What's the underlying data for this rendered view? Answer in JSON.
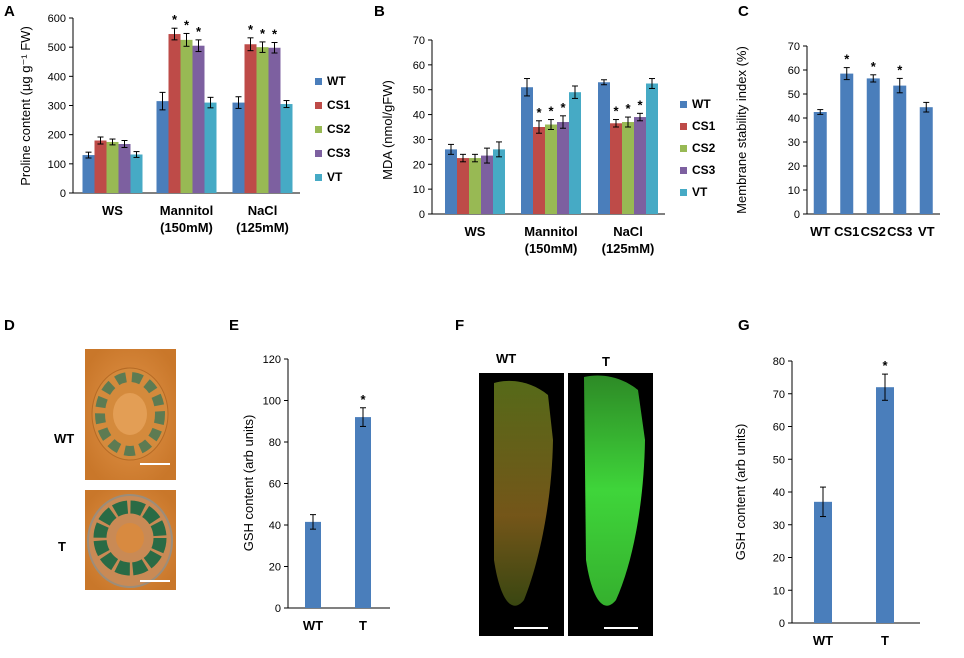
{
  "colors": {
    "WT": "#4a7ebb",
    "CS1": "#be4b48",
    "CS2": "#98b954",
    "CS3": "#7d60a0",
    "VT": "#46aac5",
    "bar": "#4a7ebb",
    "img_orange": "#d9822b",
    "img_green_dark": "#2f6b4f",
    "img_green_bright": "#3fc93a",
    "img_black": "#000000"
  },
  "panels": [
    {
      "letter": "A",
      "chart_data": {
        "type": "bar",
        "ylabel": "Proline content (µg g⁻¹ FW)",
        "ylim": [
          0,
          600
        ],
        "yticks": [
          0,
          100,
          200,
          300,
          400,
          500,
          600
        ],
        "groups": [
          "WS",
          "Mannitol\n(150mM)",
          "NaCl\n(125mM)"
        ],
        "series": [
          {
            "name": "WT",
            "values": [
              130,
              315,
              310
            ],
            "errors": [
              10,
              30,
              20
            ],
            "sig": [
              "",
              "",
              ""
            ]
          },
          {
            "name": "CS1",
            "values": [
              180,
              545,
              510
            ],
            "errors": [
              12,
              20,
              22
            ],
            "sig": [
              "",
              "*",
              "*"
            ]
          },
          {
            "name": "CS2",
            "values": [
              175,
              525,
              500
            ],
            "errors": [
              10,
              22,
              18
            ],
            "sig": [
              "",
              "*",
              "*"
            ]
          },
          {
            "name": "CS3",
            "values": [
              168,
              505,
              498
            ],
            "errors": [
              12,
              20,
              18
            ],
            "sig": [
              "",
              "*",
              "*"
            ]
          },
          {
            "name": "VT",
            "values": [
              132,
              310,
              305
            ],
            "errors": [
              10,
              18,
              12
            ],
            "sig": [
              "",
              "",
              ""
            ]
          }
        ]
      }
    },
    {
      "letter": "B",
      "chart_data": {
        "type": "bar",
        "ylabel": "MDA (nmol/gFW)",
        "ylim": [
          0,
          70
        ],
        "yticks": [
          0,
          10,
          20,
          30,
          40,
          50,
          60,
          70
        ],
        "groups": [
          "WS",
          "Mannitol\n(150mM)",
          "NaCl\n(125mM)"
        ],
        "series": [
          {
            "name": "WT",
            "values": [
              26,
              51,
              53
            ],
            "errors": [
              2,
              3.5,
              1
            ],
            "sig": [
              "",
              "",
              ""
            ]
          },
          {
            "name": "CS1",
            "values": [
              22.5,
              35,
              36.5
            ],
            "errors": [
              1.5,
              2.5,
              1.5
            ],
            "sig": [
              "",
              "*",
              "*"
            ]
          },
          {
            "name": "CS2",
            "values": [
              22.5,
              36,
              37
            ],
            "errors": [
              1.5,
              2,
              2
            ],
            "sig": [
              "",
              "*",
              "*"
            ]
          },
          {
            "name": "CS3",
            "values": [
              23.5,
              37,
              39
            ],
            "errors": [
              3,
              2.5,
              1.5
            ],
            "sig": [
              "",
              "*",
              "*"
            ]
          },
          {
            "name": "VT",
            "values": [
              26,
              49,
              52.5
            ],
            "errors": [
              3,
              2.5,
              2
            ],
            "sig": [
              "",
              "",
              ""
            ]
          }
        ]
      }
    },
    {
      "letter": "C",
      "chart_data": {
        "type": "bar",
        "ylabel": "Membrane stability index (%)",
        "ylim": [
          0,
          70
        ],
        "yticks": [
          0,
          10,
          20,
          30,
          40,
          50,
          60,
          70
        ],
        "categories": [
          "WT",
          "CS1",
          "CS2",
          "CS3",
          "VT"
        ],
        "values": [
          42.5,
          58.5,
          56.5,
          53.5,
          44.5
        ],
        "errors": [
          1,
          2.5,
          1.5,
          3,
          2
        ],
        "sig": [
          "",
          "*",
          "*",
          "*",
          ""
        ]
      }
    },
    {
      "letter": "D",
      "image": {
        "labels": [
          "WT",
          "T"
        ]
      }
    },
    {
      "letter": "E",
      "chart_data": {
        "type": "bar",
        "ylabel": "GSH content (arb units)",
        "ylim": [
          0,
          120
        ],
        "yticks": [
          0,
          20,
          40,
          60,
          80,
          100,
          120
        ],
        "categories": [
          "WT",
          "T"
        ],
        "values": [
          41.5,
          92
        ],
        "errors": [
          3.5,
          4.5
        ],
        "sig": [
          "",
          "*"
        ]
      }
    },
    {
      "letter": "F",
      "image": {
        "labels": [
          "WT",
          "T"
        ]
      }
    },
    {
      "letter": "G",
      "chart_data": {
        "type": "bar",
        "ylabel": "GSH content (arb units)",
        "ylim": [
          0,
          80
        ],
        "yticks": [
          0,
          10,
          20,
          30,
          40,
          50,
          60,
          70,
          80
        ],
        "categories": [
          "WT",
          "T"
        ],
        "values": [
          37,
          72
        ],
        "errors": [
          4.5,
          4
        ],
        "sig": [
          "",
          "*"
        ]
      }
    }
  ]
}
